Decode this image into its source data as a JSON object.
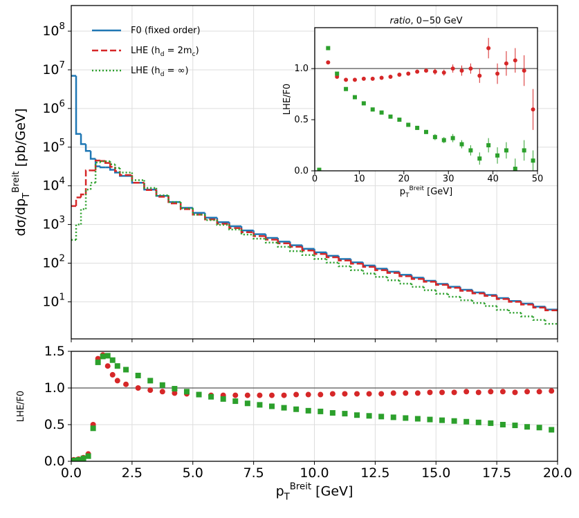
{
  "chart_data": [
    {
      "type": "histogram",
      "log_y": true,
      "grid": true,
      "legend": "upper left",
      "show_xtick_labels": false,
      "ylabel": "dσ/dp_{T}^{Breit} [pb/GeV]",
      "xlim": [
        0,
        20
      ],
      "xticks": [
        0,
        2.5,
        5,
        7.5,
        10,
        12.5,
        15,
        17.5,
        20
      ],
      "ylim": [
        1.1,
        460000000
      ],
      "yticks": [
        {
          "value": 10,
          "label": "10^{1}"
        },
        {
          "value": 100,
          "label": "10^{2}"
        },
        {
          "value": 1000,
          "label": "10^{3}"
        },
        {
          "value": 10000,
          "label": "10^{4}"
        },
        {
          "value": 100000,
          "label": "10^{5}"
        },
        {
          "value": 1000000,
          "label": "10^{6}"
        },
        {
          "value": 10000000,
          "label": "10^{7}"
        },
        {
          "value": 100000000,
          "label": "10^{8}"
        }
      ],
      "bins": [
        0,
        0.2,
        0.4,
        0.6,
        0.8,
        1.0,
        1.2,
        1.4,
        1.6,
        1.8,
        2.0,
        2.5,
        3,
        3.5,
        4,
        4.5,
        5,
        5.5,
        6,
        6.5,
        7,
        7.5,
        8,
        8.5,
        9,
        9.5,
        10,
        10.5,
        11,
        11.5,
        12,
        12.5,
        13,
        13.5,
        14,
        14.5,
        15,
        15.5,
        16,
        16.5,
        17,
        17.5,
        18,
        18.5,
        19,
        19.5,
        20
      ],
      "series": [
        {
          "name": "F0 (fixed order)",
          "color": "#1f77b4",
          "line_style": "solid",
          "values": [
            7000000,
            220000,
            120000,
            80000,
            50000,
            32000,
            30000,
            30000,
            26000,
            22000,
            18000,
            12000,
            8000,
            5500,
            3800,
            2700,
            2000,
            1500,
            1150,
            900,
            700,
            560,
            450,
            360,
            290,
            235,
            190,
            155,
            128,
            105,
            87,
            72,
            60,
            50,
            42,
            35,
            29,
            24.5,
            20.5,
            17.5,
            15,
            12.5,
            10.5,
            9,
            7.5,
            6.3
          ]
        },
        {
          "name": "LHE (h_{d} = 2m_{c})",
          "color": "#d62728",
          "line_style": "dashed",
          "values": [
            3000,
            5000,
            6000,
            25000,
            25000,
            45000,
            44000,
            39000,
            31000,
            24000,
            19000,
            12000,
            7800,
            5200,
            3500,
            2500,
            1800,
            1350,
            1040,
            810,
            630,
            500,
            405,
            325,
            265,
            212,
            173,
            142,
            117,
            97,
            80,
            66,
            56,
            46,
            39,
            33,
            27.5,
            23,
            19.3,
            16.5,
            14.2,
            11.8,
            10,
            8.5,
            7.1,
            6.0
          ]
        },
        {
          "name": "LHE (h_{d} = ∞)",
          "color": "#2ca02c",
          "line_style": "dotted",
          "values": [
            400,
            1000,
            2500,
            8000,
            12000,
            40000,
            43000,
            43000,
            36000,
            29000,
            22000,
            14000,
            8800,
            5700,
            3800,
            2600,
            1800,
            1300,
            980,
            740,
            550,
            430,
            340,
            265,
            205,
            162,
            129,
            103,
            83,
            66,
            54,
            44,
            36,
            29.5,
            24.4,
            20,
            16.2,
            13.5,
            11,
            9.3,
            7.8,
            6.2,
            5.2,
            4.2,
            3.4,
            2.7
          ]
        }
      ]
    },
    {
      "type": "scatter",
      "grid": true,
      "hline": 1,
      "show_xtick_labels": true,
      "xlabel": "p_{T}^{Breit} [GeV]",
      "ylabel": "LHE/F0",
      "xlim": [
        0,
        20
      ],
      "xticks": [
        {
          "value": 0,
          "label": "0.0"
        },
        2.5,
        {
          "value": 5,
          "label": "5.0"
        },
        7.5,
        {
          "value": 10,
          "label": "10.0"
        },
        12.5,
        {
          "value": 15,
          "label": "15.0"
        },
        17.5,
        {
          "value": 20,
          "label": "20.0"
        }
      ],
      "ylim": [
        0,
        1.5
      ],
      "yticks": [
        {
          "value": 0,
          "label": "0.0"
        },
        0.5,
        {
          "value": 1,
          "label": "1.0"
        },
        1.5
      ],
      "bins": [
        0,
        0.2,
        0.4,
        0.6,
        0.8,
        1.0,
        1.2,
        1.4,
        1.6,
        1.8,
        2.0,
        2.5,
        3,
        3.5,
        4,
        4.5,
        5,
        5.5,
        6,
        6.5,
        7,
        7.5,
        8,
        8.5,
        9,
        9.5,
        10,
        10.5,
        11,
        11.5,
        12,
        12.5,
        13,
        13.5,
        14,
        14.5,
        15,
        15.5,
        16,
        16.5,
        17,
        17.5,
        18,
        18.5,
        19,
        19.5,
        20
      ],
      "series": [
        {
          "color": "#d62728",
          "marker": "circle",
          "values": [
            0.02,
            0.03,
            0.05,
            0.1,
            0.5,
            1.4,
            1.45,
            1.3,
            1.18,
            1.1,
            1.05,
            1.0,
            0.97,
            0.95,
            0.93,
            0.92,
            0.91,
            0.9,
            0.9,
            0.9,
            0.9,
            0.9,
            0.9,
            0.9,
            0.91,
            0.91,
            0.91,
            0.92,
            0.92,
            0.92,
            0.92,
            0.92,
            0.93,
            0.93,
            0.93,
            0.94,
            0.94,
            0.94,
            0.95,
            0.94,
            0.95,
            0.95,
            0.94,
            0.95,
            0.95,
            0.96
          ]
        },
        {
          "color": "#2ca02c",
          "marker": "square",
          "values": [
            0.01,
            0.02,
            0.04,
            0.07,
            0.45,
            1.35,
            1.43,
            1.44,
            1.38,
            1.3,
            1.25,
            1.17,
            1.1,
            1.04,
            0.99,
            0.95,
            0.91,
            0.88,
            0.85,
            0.82,
            0.79,
            0.77,
            0.75,
            0.73,
            0.71,
            0.69,
            0.68,
            0.66,
            0.65,
            0.63,
            0.62,
            0.61,
            0.6,
            0.59,
            0.58,
            0.57,
            0.56,
            0.55,
            0.54,
            0.53,
            0.52,
            0.5,
            0.49,
            0.47,
            0.46,
            0.43
          ]
        }
      ]
    },
    {
      "type": "scatter",
      "grid": false,
      "hline": 1,
      "show_xtick_labels": true,
      "title_italic": "ratio",
      "title": ", 0−50 GeV",
      "xlabel": "p_{T}^{Breit} [GeV]",
      "ylabel": "LHE/F0",
      "xlim": [
        0,
        50
      ],
      "xticks": [
        0,
        10,
        20,
        30,
        40,
        50
      ],
      "ylim": [
        0,
        1.4
      ],
      "yticks": [
        {
          "value": 0,
          "label": "0.0"
        },
        0.5,
        {
          "value": 1,
          "label": "1.0"
        }
      ],
      "x": [
        1,
        3,
        5,
        7,
        9,
        11,
        13,
        15,
        17,
        19,
        21,
        23,
        25,
        27,
        29,
        31,
        33,
        35,
        37,
        39,
        41,
        43,
        45,
        47,
        49
      ],
      "series": [
        {
          "color": "#d62728",
          "marker": "circle",
          "values": [
            null,
            1.06,
            0.92,
            0.89,
            0.89,
            0.9,
            0.9,
            0.91,
            0.92,
            0.94,
            0.95,
            0.97,
            0.98,
            0.97,
            0.96,
            1.0,
            0.98,
            1.0,
            0.93,
            1.2,
            0.95,
            1.05,
            1.08,
            0.98,
            0.6
          ],
          "errors": [
            null,
            0.01,
            0.01,
            0.01,
            0.01,
            0.01,
            0.01,
            0.01,
            0.01,
            0.01,
            0.02,
            0.02,
            0.02,
            0.03,
            0.03,
            0.04,
            0.05,
            0.05,
            0.07,
            0.1,
            0.1,
            0.12,
            0.12,
            0.15,
            0.2
          ]
        },
        {
          "color": "#2ca02c",
          "marker": "square",
          "values": [
            0.01,
            1.2,
            0.95,
            0.8,
            0.72,
            0.66,
            0.6,
            0.57,
            0.53,
            0.5,
            0.45,
            0.42,
            0.38,
            0.33,
            0.3,
            0.32,
            0.26,
            0.2,
            0.12,
            0.25,
            0.15,
            0.2,
            0.02,
            0.2,
            0.1
          ],
          "errors": [
            0.01,
            0.01,
            0.01,
            0.01,
            0.01,
            0.01,
            0.01,
            0.01,
            0.01,
            0.01,
            0.02,
            0.02,
            0.02,
            0.03,
            0.03,
            0.04,
            0.04,
            0.05,
            0.06,
            0.07,
            0.08,
            0.08,
            0.1,
            0.1,
            0.1
          ]
        }
      ]
    }
  ]
}
